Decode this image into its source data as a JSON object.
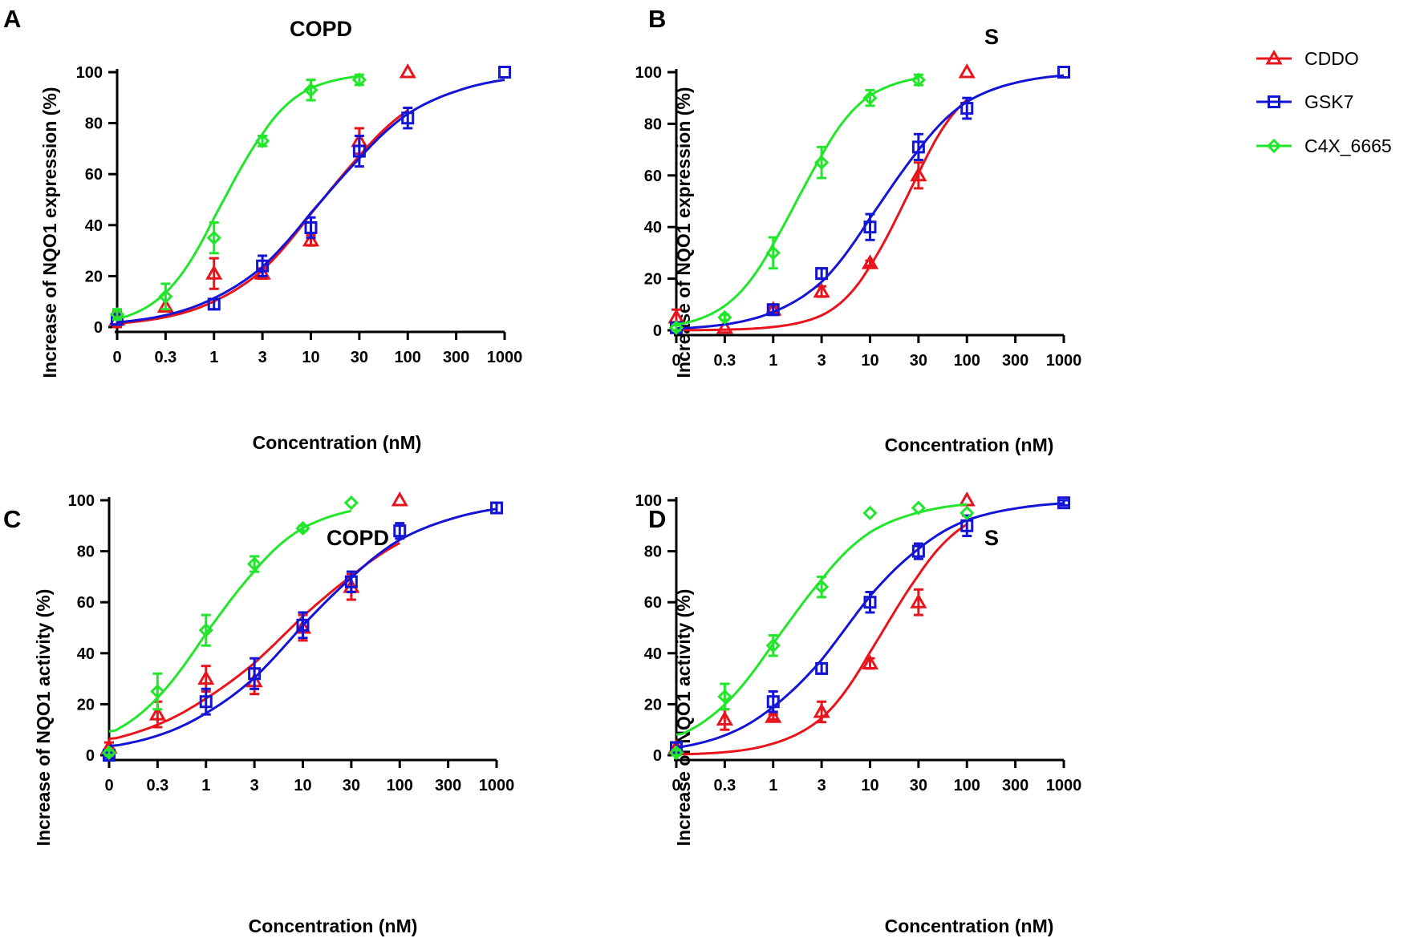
{
  "figure": {
    "colors": {
      "CDDO": "#e8141c",
      "GSK7": "#1414d6",
      "C4X_6665": "#22e62b"
    },
    "legend": [
      {
        "name": "CDDO",
        "marker": "triangle"
      },
      {
        "name": "GSK7",
        "marker": "square"
      },
      {
        "name": "C4X_6665",
        "marker": "diamond"
      }
    ]
  },
  "chart_data": [
    {
      "panel": "A",
      "title": "COPD",
      "type": "scatter",
      "xlabel": "Concentration (nM)",
      "ylabel": "Increase of NQO1 expression (%)",
      "xscale": "log",
      "x_ticks": [
        0,
        0.3,
        1,
        3,
        10,
        30,
        100,
        300,
        1000
      ],
      "x_tick_labels": [
        "0",
        "0.3",
        "1",
        "3",
        "10",
        "30",
        "100",
        "300",
        "1000"
      ],
      "ylim": [
        0,
        100
      ],
      "y_ticks": [
        0,
        20,
        40,
        60,
        80,
        100
      ],
      "series": [
        {
          "name": "CDDO",
          "x": [
            0,
            0.3,
            1,
            3,
            10,
            30,
            100
          ],
          "y": [
            3,
            8,
            21,
            21,
            34,
            73,
            100
          ],
          "err": [
            3,
            0,
            6,
            2,
            2,
            5,
            0
          ],
          "fit": {
            "ec50": 13,
            "hill": 0.85,
            "bottom": 0,
            "top": 100,
            "x_from": 0.1,
            "x_to": 100
          }
        },
        {
          "name": "GSK7",
          "x": [
            0,
            1,
            3,
            10,
            30,
            100,
            1000
          ],
          "y": [
            3,
            9,
            24,
            39,
            69,
            82,
            100
          ],
          "err": [
            2,
            2,
            4,
            4,
            6,
            4,
            0
          ],
          "fit": {
            "ec50": 13,
            "hill": 0.8,
            "bottom": 0,
            "top": 100,
            "x_from": 0.1,
            "x_to": 1000
          }
        },
        {
          "name": "C4X_6665",
          "x": [
            0,
            0.3,
            1,
            3,
            10,
            30
          ],
          "y": [
            5,
            12,
            35,
            73,
            93,
            97
          ],
          "err": [
            2,
            5,
            6,
            2,
            4,
            2
          ],
          "fit": {
            "ec50": 1.25,
            "hill": 1.3,
            "bottom": 0,
            "top": 100,
            "x_from": 0.1,
            "x_to": 30
          }
        }
      ]
    },
    {
      "panel": "B",
      "title": "S",
      "type": "scatter",
      "xlabel": "Concentration (nM)",
      "ylabel": "Increase of NQO1 expression (%)",
      "xscale": "log",
      "x_ticks": [
        0,
        0.3,
        1,
        3,
        10,
        30,
        100,
        300,
        1000
      ],
      "x_tick_labels": [
        "0",
        "0.3",
        "1",
        "3",
        "10",
        "30",
        "100",
        "300",
        "1000"
      ],
      "ylim": [
        0,
        100
      ],
      "y_ticks": [
        0,
        20,
        40,
        60,
        80,
        100
      ],
      "series": [
        {
          "name": "CDDO",
          "x": [
            0,
            0.3,
            1,
            3,
            10,
            30,
            100
          ],
          "y": [
            5,
            1,
            8,
            15,
            26,
            60,
            100
          ],
          "err": [
            3,
            0,
            1,
            2,
            1,
            5,
            0
          ],
          "fit": {
            "ec50": 22,
            "hill": 1.4,
            "bottom": 0,
            "top": 100,
            "x_from": 0.1,
            "x_to": 100
          }
        },
        {
          "name": "GSK7",
          "x": [
            0,
            1,
            3,
            10,
            30,
            100,
            1000
          ],
          "y": [
            1,
            8,
            22,
            40,
            71,
            86,
            100
          ],
          "err": [
            1,
            2,
            2,
            5,
            5,
            4,
            0
          ],
          "fit": {
            "ec50": 13,
            "hill": 1.0,
            "bottom": 0,
            "top": 100,
            "x_from": 0.1,
            "x_to": 1000
          }
        },
        {
          "name": "C4X_6665",
          "x": [
            0,
            0.3,
            1,
            3,
            10,
            30
          ],
          "y": [
            1,
            5,
            30,
            65,
            90,
            97
          ],
          "err": [
            1,
            1,
            6,
            6,
            3,
            2
          ],
          "fit": {
            "ec50": 1.7,
            "hill": 1.3,
            "bottom": 0,
            "top": 100,
            "x_from": 0.1,
            "x_to": 30
          }
        }
      ]
    },
    {
      "panel": "C",
      "title": "COPD",
      "type": "scatter",
      "xlabel": "Concentration (nM)",
      "ylabel": "Increase of NQO1 activity (%)",
      "xscale": "log",
      "x_ticks": [
        0,
        0.3,
        1,
        3,
        10,
        30,
        100,
        300,
        1000
      ],
      "x_tick_labels": [
        "0",
        "0.3",
        "1",
        "3",
        "10",
        "30",
        "100",
        "300",
        "1000"
      ],
      "ylim": [
        0,
        100
      ],
      "y_ticks": [
        0,
        20,
        40,
        60,
        80,
        100
      ],
      "series": [
        {
          "name": "CDDO",
          "x": [
            0,
            0.3,
            1,
            3,
            10,
            30,
            100
          ],
          "y": [
            3,
            16,
            30,
            29,
            50,
            66,
            100
          ],
          "err": [
            2,
            5,
            5,
            5,
            5,
            5,
            0
          ],
          "fit": {
            "ec50": 7.5,
            "hill": 0.62,
            "bottom": 0,
            "top": 100,
            "x_from": 0.1,
            "x_to": 100
          }
        },
        {
          "name": "GSK7",
          "x": [
            0,
            1,
            3,
            10,
            30,
            100,
            1000
          ],
          "y": [
            0,
            21,
            32,
            51,
            68,
            88,
            97
          ],
          "err": [
            1,
            5,
            6,
            5,
            4,
            3,
            2
          ],
          "fit": {
            "ec50": 9.5,
            "hill": 0.72,
            "bottom": 0,
            "top": 100,
            "x_from": 0.1,
            "x_to": 1000
          }
        },
        {
          "name": "C4X_6665",
          "x": [
            0,
            0.3,
            1,
            3,
            10,
            30
          ],
          "y": [
            1,
            25,
            49,
            75,
            89,
            99
          ],
          "err": [
            1,
            7,
            6,
            3,
            1,
            0
          ],
          "fit": {
            "ec50": 1.1,
            "hill": 0.95,
            "bottom": 0,
            "top": 100,
            "x_from": 0.1,
            "x_to": 30
          }
        }
      ]
    },
    {
      "panel": "D",
      "title": "S",
      "type": "scatter",
      "xlabel": "Concentration (nM)",
      "ylabel": "Increase of NQO1 activity (%)",
      "xscale": "log",
      "x_ticks": [
        0,
        0.3,
        1,
        3,
        10,
        30,
        100,
        300,
        1000
      ],
      "x_tick_labels": [
        "0",
        "0.3",
        "1",
        "3",
        "10",
        "30",
        "100",
        "300",
        "1000"
      ],
      "ylim": [
        0,
        100
      ],
      "y_ticks": [
        0,
        20,
        40,
        60,
        80,
        100
      ],
      "series": [
        {
          "name": "CDDO",
          "x": [
            0,
            0.3,
            1,
            3,
            10,
            30,
            100
          ],
          "y": [
            3,
            14,
            15,
            17,
            36,
            60,
            100
          ],
          "err": [
            2,
            4,
            1,
            4,
            2,
            5,
            0
          ],
          "fit": {
            "ec50": 14,
            "hill": 1.15,
            "bottom": 0,
            "top": 100,
            "x_from": 0.1,
            "x_to": 100
          }
        },
        {
          "name": "GSK7",
          "x": [
            0,
            1,
            3,
            10,
            30,
            100,
            1000
          ],
          "y": [
            3,
            21,
            34,
            60,
            80,
            90,
            99
          ],
          "err": [
            2,
            4,
            2,
            4,
            3,
            4,
            1
          ],
          "fit": {
            "ec50": 5.5,
            "hill": 0.85,
            "bottom": 0,
            "top": 100,
            "x_from": 0.1,
            "x_to": 1000
          }
        },
        {
          "name": "C4X_6665",
          "x": [
            0,
            0.3,
            1,
            3,
            10,
            30,
            100
          ],
          "y": [
            1,
            23,
            43,
            66,
            95,
            97,
            95
          ],
          "err": [
            1,
            5,
            4,
            4,
            0,
            0,
            0
          ],
          "fit": {
            "ec50": 1.3,
            "hill": 0.95,
            "bottom": 0,
            "top": 100,
            "x_from": 0.1,
            "x_to": 100
          }
        }
      ]
    }
  ]
}
